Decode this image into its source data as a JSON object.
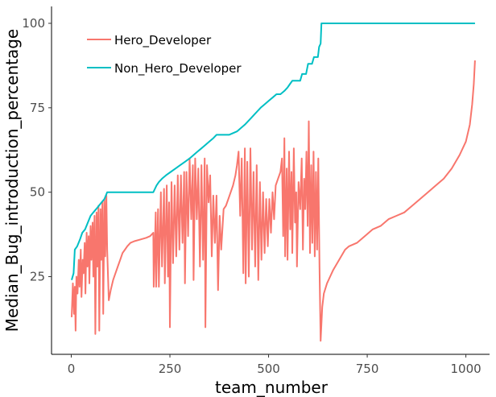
{
  "chart_data": {
    "type": "line",
    "title": "",
    "xlabel": "team_number",
    "ylabel": "Median_Bug_introduction_percentage",
    "xlim": [
      -50,
      1060
    ],
    "ylim": [
      2,
      105
    ],
    "x_ticks": [
      0,
      250,
      500,
      750,
      1000
    ],
    "y_ticks": [
      25,
      50,
      75,
      100
    ],
    "x_tick_labels": [
      "0",
      "250",
      "500",
      "750",
      "1000"
    ],
    "y_tick_labels": [
      "25",
      "50",
      "75",
      "100"
    ],
    "grid": false,
    "legend": {
      "position": "top-left",
      "inside": true
    },
    "series": [
      {
        "name": "Hero_Developer",
        "color": "#f8766d",
        "points": [
          [
            1,
            13
          ],
          [
            4,
            23
          ],
          [
            7,
            14
          ],
          [
            9,
            22
          ],
          [
            11,
            9
          ],
          [
            13,
            25
          ],
          [
            16,
            20
          ],
          [
            19,
            30
          ],
          [
            21,
            22
          ],
          [
            24,
            33
          ],
          [
            26,
            19
          ],
          [
            29,
            30
          ],
          [
            31,
            26
          ],
          [
            34,
            35
          ],
          [
            36,
            20
          ],
          [
            39,
            38
          ],
          [
            41,
            28
          ],
          [
            44,
            37
          ],
          [
            46,
            23
          ],
          [
            49,
            40
          ],
          [
            51,
            30
          ],
          [
            54,
            41
          ],
          [
            56,
            25
          ],
          [
            59,
            43
          ],
          [
            61,
            8
          ],
          [
            64,
            44
          ],
          [
            66,
            28
          ],
          [
            69,
            46
          ],
          [
            71,
            9
          ],
          [
            74,
            45
          ],
          [
            76,
            30
          ],
          [
            79,
            47
          ],
          [
            81,
            14
          ],
          [
            84,
            48
          ],
          [
            86,
            31
          ],
          [
            89,
            49
          ],
          [
            91,
            33
          ],
          [
            95,
            18
          ],
          [
            100,
            21
          ],
          [
            106,
            24
          ],
          [
            112,
            26
          ],
          [
            118,
            28
          ],
          [
            124,
            30
          ],
          [
            130,
            32
          ],
          [
            136,
            33
          ],
          [
            142,
            34
          ],
          [
            150,
            35
          ],
          [
            160,
            35.5
          ],
          [
            175,
            36
          ],
          [
            190,
            36.5
          ],
          [
            200,
            37
          ],
          [
            208,
            38
          ],
          [
            209,
            22
          ],
          [
            214,
            44
          ],
          [
            215,
            22
          ],
          [
            220,
            45
          ],
          [
            222,
            22
          ],
          [
            227,
            50
          ],
          [
            230,
            28
          ],
          [
            235,
            51
          ],
          [
            237,
            23
          ],
          [
            242,
            52
          ],
          [
            245,
            25
          ],
          [
            248,
            47
          ],
          [
            250,
            10
          ],
          [
            254,
            53
          ],
          [
            258,
            29
          ],
          [
            262,
            52
          ],
          [
            266,
            31
          ],
          [
            270,
            55
          ],
          [
            274,
            33
          ],
          [
            278,
            55
          ],
          [
            282,
            35
          ],
          [
            286,
            56
          ],
          [
            288,
            23
          ],
          [
            292,
            56
          ],
          [
            296,
            37
          ],
          [
            300,
            60
          ],
          [
            304,
            42
          ],
          [
            308,
            58
          ],
          [
            310,
            24
          ],
          [
            314,
            60
          ],
          [
            318,
            42
          ],
          [
            322,
            57
          ],
          [
            326,
            28
          ],
          [
            330,
            58
          ],
          [
            334,
            30
          ],
          [
            338,
            60
          ],
          [
            340,
            10
          ],
          [
            344,
            58
          ],
          [
            348,
            47
          ],
          [
            352,
            55
          ],
          [
            356,
            31
          ],
          [
            360,
            49
          ],
          [
            364,
            35
          ],
          [
            368,
            49
          ],
          [
            372,
            21
          ],
          [
            376,
            43
          ],
          [
            380,
            33
          ],
          [
            386,
            45
          ],
          [
            392,
            46
          ],
          [
            398,
            48
          ],
          [
            404,
            50
          ],
          [
            410,
            52
          ],
          [
            416,
            55
          ],
          [
            420,
            58
          ],
          [
            424,
            62
          ],
          [
            428,
            43
          ],
          [
            432,
            60
          ],
          [
            436,
            26
          ],
          [
            440,
            63
          ],
          [
            442,
            23
          ],
          [
            446,
            59
          ],
          [
            450,
            25
          ],
          [
            454,
            63
          ],
          [
            458,
            33
          ],
          [
            462,
            56
          ],
          [
            466,
            28
          ],
          [
            470,
            58
          ],
          [
            474,
            24
          ],
          [
            478,
            53
          ],
          [
            482,
            30
          ],
          [
            486,
            50
          ],
          [
            490,
            32
          ],
          [
            494,
            48
          ],
          [
            498,
            34
          ],
          [
            502,
            48
          ],
          [
            506,
            38
          ],
          [
            510,
            50
          ],
          [
            514,
            42
          ],
          [
            518,
            52
          ],
          [
            524,
            54
          ],
          [
            530,
            56
          ],
          [
            534,
            60
          ],
          [
            537,
            37
          ],
          [
            540,
            66
          ],
          [
            542,
            31
          ],
          [
            546,
            57
          ],
          [
            548,
            30
          ],
          [
            552,
            62
          ],
          [
            555,
            39
          ],
          [
            558,
            56
          ],
          [
            560,
            32
          ],
          [
            564,
            63
          ],
          [
            567,
            41
          ],
          [
            570,
            50
          ],
          [
            572,
            28
          ],
          [
            576,
            53
          ],
          [
            580,
            45
          ],
          [
            584,
            60
          ],
          [
            587,
            33
          ],
          [
            590,
            54
          ],
          [
            593,
            45
          ],
          [
            596,
            62
          ],
          [
            599,
            40
          ],
          [
            602,
            71
          ],
          [
            605,
            32
          ],
          [
            608,
            58
          ],
          [
            611,
            35
          ],
          [
            614,
            62
          ],
          [
            617,
            31
          ],
          [
            620,
            56
          ],
          [
            623,
            33
          ],
          [
            626,
            60
          ],
          [
            629,
            28
          ],
          [
            632,
            6
          ],
          [
            636,
            16
          ],
          [
            640,
            20
          ],
          [
            648,
            23
          ],
          [
            656,
            25
          ],
          [
            664,
            27
          ],
          [
            674,
            29
          ],
          [
            684,
            31
          ],
          [
            694,
            33
          ],
          [
            704,
            34
          ],
          [
            724,
            35
          ],
          [
            744,
            37
          ],
          [
            764,
            39
          ],
          [
            784,
            40
          ],
          [
            804,
            42
          ],
          [
            824,
            43
          ],
          [
            844,
            44
          ],
          [
            864,
            46
          ],
          [
            884,
            48
          ],
          [
            904,
            50
          ],
          [
            924,
            52
          ],
          [
            944,
            54
          ],
          [
            964,
            57
          ],
          [
            984,
            61
          ],
          [
            1000,
            65
          ],
          [
            1010,
            70
          ],
          [
            1016,
            76
          ],
          [
            1020,
            82
          ],
          [
            1023,
            89
          ]
        ]
      },
      {
        "name": "Non_Hero_Developer",
        "color": "#00bfc4",
        "points": [
          [
            1,
            24
          ],
          [
            6,
            26
          ],
          [
            9,
            33
          ],
          [
            15,
            34
          ],
          [
            22,
            36
          ],
          [
            28,
            38
          ],
          [
            35,
            39
          ],
          [
            42,
            41
          ],
          [
            49,
            43
          ],
          [
            56,
            44
          ],
          [
            63,
            45
          ],
          [
            70,
            46
          ],
          [
            77,
            47
          ],
          [
            84,
            48
          ],
          [
            91,
            50
          ],
          [
            100,
            50
          ],
          [
            150,
            50
          ],
          [
            208,
            50
          ],
          [
            212,
            51
          ],
          [
            216,
            52
          ],
          [
            222,
            53
          ],
          [
            230,
            54
          ],
          [
            240,
            55
          ],
          [
            252,
            56
          ],
          [
            264,
            57
          ],
          [
            276,
            58
          ],
          [
            288,
            59
          ],
          [
            300,
            60
          ],
          [
            310,
            61
          ],
          [
            320,
            62
          ],
          [
            330,
            63
          ],
          [
            340,
            64
          ],
          [
            350,
            65
          ],
          [
            360,
            66
          ],
          [
            368,
            67
          ],
          [
            380,
            67
          ],
          [
            400,
            67
          ],
          [
            420,
            68
          ],
          [
            430,
            69
          ],
          [
            440,
            70
          ],
          [
            448,
            71
          ],
          [
            456,
            72
          ],
          [
            464,
            73
          ],
          [
            472,
            74
          ],
          [
            480,
            75
          ],
          [
            490,
            76
          ],
          [
            500,
            77
          ],
          [
            510,
            78
          ],
          [
            520,
            79
          ],
          [
            530,
            79
          ],
          [
            540,
            80
          ],
          [
            548,
            81
          ],
          [
            554,
            82
          ],
          [
            560,
            83
          ],
          [
            580,
            83
          ],
          [
            585,
            85
          ],
          [
            595,
            85
          ],
          [
            600,
            88
          ],
          [
            610,
            88
          ],
          [
            615,
            90
          ],
          [
            625,
            90
          ],
          [
            628,
            93
          ],
          [
            632,
            94
          ],
          [
            634,
            100
          ],
          [
            700,
            100
          ],
          [
            800,
            100
          ],
          [
            900,
            100
          ],
          [
            1000,
            100
          ],
          [
            1023,
            100
          ]
        ]
      }
    ]
  }
}
